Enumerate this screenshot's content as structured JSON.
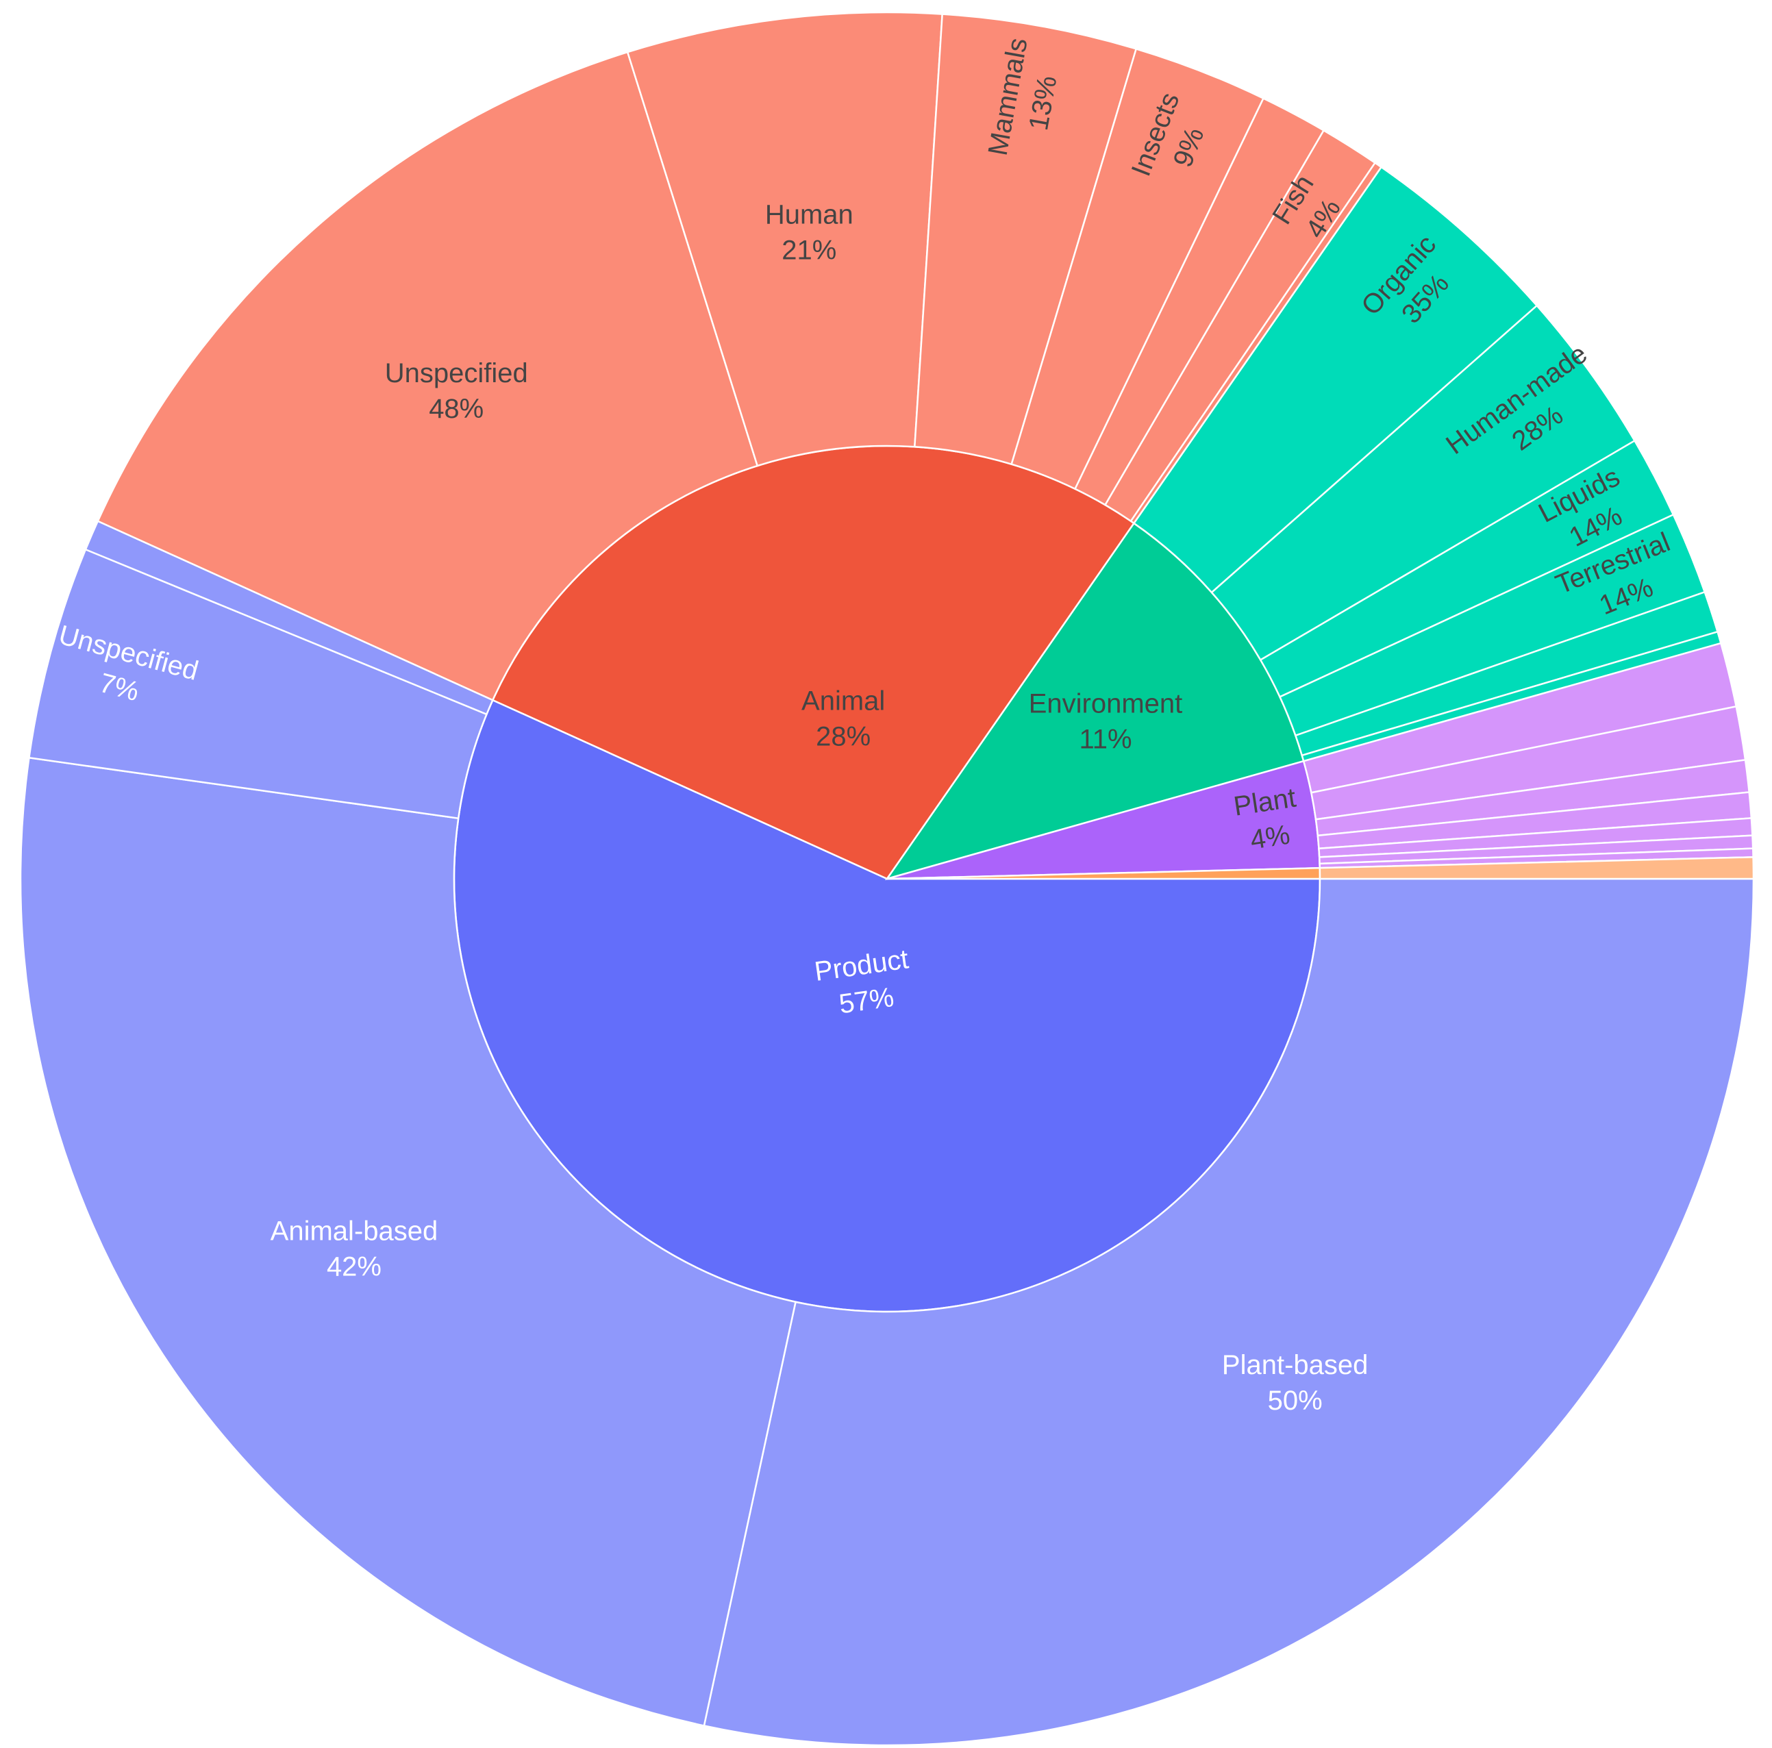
{
  "chart_data": {
    "type": "sunburst",
    "parents": [
      {
        "name": "Product",
        "pct": 57,
        "color": "#636efa",
        "label_color": "#ffffff",
        "children": [
          {
            "name": "Plant-based",
            "pct": 50,
            "color": "#8f98fb",
            "label": true
          },
          {
            "name": "Animal-based",
            "pct": 42,
            "color": "#8f98fb",
            "label": true
          },
          {
            "name": "Unspecified",
            "pct": 7,
            "color": "#8f98fb",
            "label": true
          },
          {
            "name": "",
            "pct": 1,
            "color": "#8f98fb",
            "label": false
          }
        ]
      },
      {
        "name": "Animal",
        "pct": 28,
        "color": "#ef553b",
        "label_color": "#444444",
        "children": [
          {
            "name": "Unspecified",
            "pct": 48,
            "color": "#fb8b77",
            "label": true
          },
          {
            "name": "Human",
            "pct": 21,
            "color": "#fb8b77",
            "label": true
          },
          {
            "name": "Mammals",
            "pct": 13,
            "color": "#fb8b77",
            "label": true
          },
          {
            "name": "Insects",
            "pct": 9,
            "color": "#fb8b77",
            "label": true
          },
          {
            "name": "",
            "pct": 4.5,
            "color": "#fb8b77",
            "label": false
          },
          {
            "name": "Fish",
            "pct": 4,
            "color": "#fb8b77",
            "label": true
          },
          {
            "name": "",
            "pct": 0.5,
            "color": "#fb8b77",
            "label": false
          }
        ]
      },
      {
        "name": "Environment",
        "pct": 11,
        "color": "#00cc96",
        "label_color": "#444444",
        "children": [
          {
            "name": "Organic",
            "pct": 35,
            "color": "#00dcb8",
            "label": true
          },
          {
            "name": "Human-made",
            "pct": 28,
            "color": "#00dcb8",
            "label": true
          },
          {
            "name": "Liquids",
            "pct": 14,
            "color": "#00dcb8",
            "label": true
          },
          {
            "name": "Terrestrial",
            "pct": 14,
            "color": "#00dcb8",
            "label": true
          },
          {
            "name": "",
            "pct": 7,
            "color": "#00dcb8",
            "label": false
          },
          {
            "name": "",
            "pct": 2,
            "color": "#00dcb8",
            "label": false
          }
        ]
      },
      {
        "name": "Plant",
        "pct": 4,
        "color": "#ab63fa",
        "label_color": "#444444",
        "children": [
          {
            "name": "",
            "pct": 30,
            "color": "#d595fb",
            "label": false
          },
          {
            "name": "",
            "pct": 25,
            "color": "#d595fb",
            "label": false
          },
          {
            "name": "",
            "pct": 15,
            "color": "#d595fb",
            "label": false
          },
          {
            "name": "",
            "pct": 12,
            "color": "#d595fb",
            "label": false
          },
          {
            "name": "",
            "pct": 8,
            "color": "#d595fb",
            "label": false
          },
          {
            "name": "",
            "pct": 6,
            "color": "#d595fb",
            "label": false
          },
          {
            "name": "",
            "pct": 4,
            "color": "#d595fb",
            "label": false
          }
        ]
      },
      {
        "name": "",
        "pct": 0.4,
        "color": "#ffa15a",
        "label_color": "#444444",
        "children": [
          {
            "name": "",
            "pct": 100,
            "color": "#ffb988",
            "label": false
          }
        ]
      }
    ]
  }
}
